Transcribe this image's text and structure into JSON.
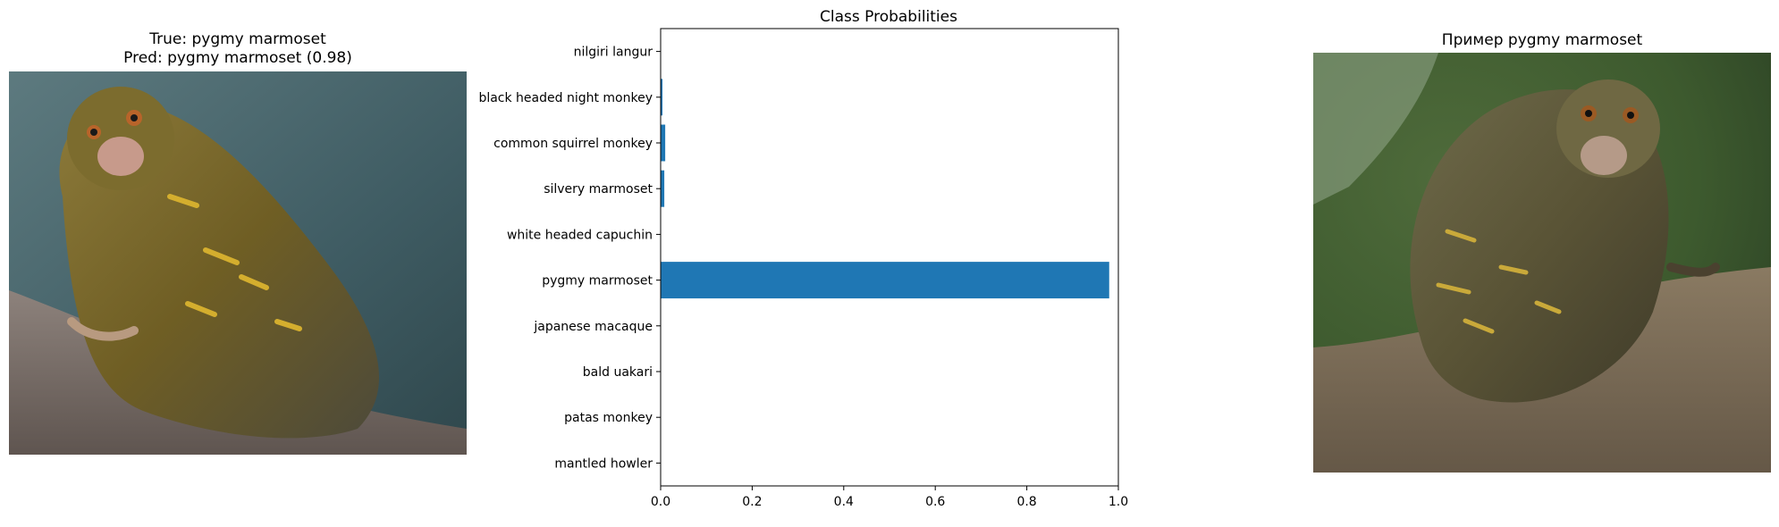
{
  "left_panel": {
    "title_line1": "True: pygmy marmoset",
    "title_line2": "Pred: pygmy marmoset (0.98)"
  },
  "right_panel": {
    "title": "Пример pygmy marmoset"
  },
  "chart_data": {
    "type": "bar",
    "orientation": "horizontal",
    "title": "Class Probabilities",
    "xlabel": "",
    "ylabel": "",
    "categories": [
      "mantled howler",
      "patas monkey",
      "bald uakari",
      "japanese macaque",
      "pygmy marmoset",
      "white headed capuchin",
      "silvery marmoset",
      "common squirrel monkey",
      "black headed night monkey",
      "nilgiri langur"
    ],
    "values": [
      0.0,
      0.0,
      0.0,
      0.0,
      0.98,
      0.0,
      0.008,
      0.01,
      0.004,
      0.0
    ],
    "xlim": [
      0,
      1.0
    ],
    "xticks": [
      "0.0",
      "0.2",
      "0.4",
      "0.6",
      "0.8",
      "1.0"
    ],
    "grid": false,
    "bar_color": "#1f77b4"
  }
}
